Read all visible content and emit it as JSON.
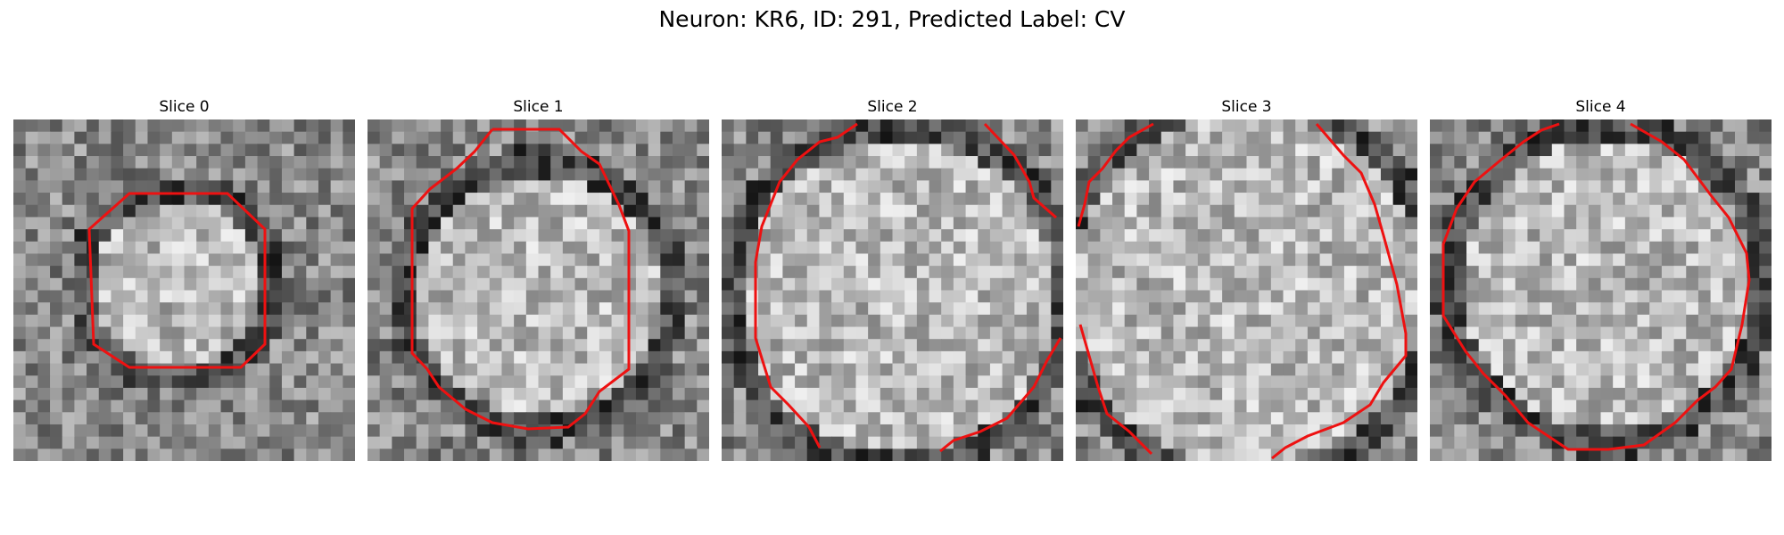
{
  "figure": {
    "title": "Neuron: KR6, ID: 291, Predicted Label: CV"
  },
  "panels": [
    {
      "title": "Slice 0"
    },
    {
      "title": "Slice 1"
    },
    {
      "title": "Slice 2"
    },
    {
      "title": "Slice 3"
    },
    {
      "title": "Slice 4"
    }
  ],
  "colors": {
    "contour": "#ee1111",
    "background": "#ffffff"
  }
}
